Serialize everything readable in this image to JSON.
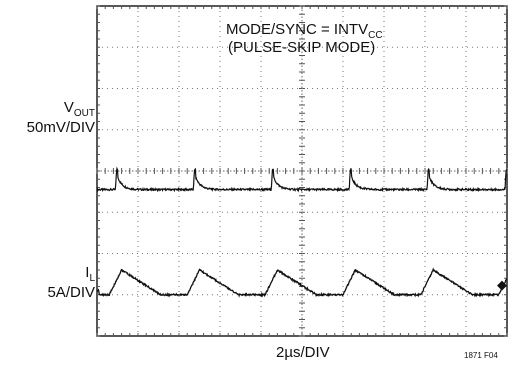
{
  "chart_data": {
    "type": "line",
    "title_line1_main": "MODE/SYNC = INTV",
    "title_line1_sub": "CC",
    "title_line2": "(PULSE-SKIP MODE)",
    "xlabel": "2µs/DIV",
    "figure_id": "1871 F04",
    "grid": true,
    "divisions": {
      "x": 10,
      "y": 8
    },
    "series": [
      {
        "label_main": "V",
        "label_sub": "OUT",
        "scale": "50mV/DIV",
        "kind": "vout",
        "level_div": 3.55,
        "pulse_period_div": 1.9,
        "first_pulse_div": 0.45,
        "spike_div": 0.5
      },
      {
        "label_main": "I",
        "label_sub": "L",
        "scale": "5A/DIV",
        "kind": "inductor_current",
        "baseline_div": 1.0,
        "peak_div": 1.6,
        "pulse_period_div": 1.9,
        "first_pulse_div": 0.3,
        "rise_div": 0.3,
        "fall_div": 0.95
      }
    ],
    "marker_symbol": "◆"
  }
}
